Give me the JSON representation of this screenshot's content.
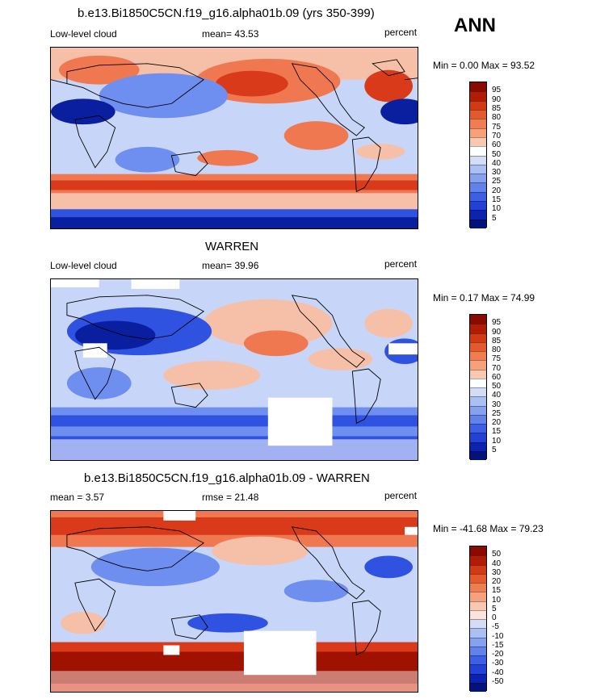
{
  "season": "ANN",
  "colors": {
    "deep_blue": "#0a1fa0",
    "blue": "#2f52e0",
    "mid_blue": "#6f8ff0",
    "light_blue": "#c7d6f8",
    "white": "#ffffff",
    "light_red": "#f6c0a8",
    "orange": "#f07850",
    "red": "#d83a1a",
    "dark_red": "#a01200"
  },
  "panels": [
    {
      "title": "b.e13.Bi1850C5CN.f19_g16.alpha01b.09 (yrs 350-399)",
      "left_label": "Low-level cloud",
      "stat_label": "mean=",
      "stat_value": "43.53",
      "units": "percent",
      "minmax": "Min =   0.00 Max =  93.52",
      "levels": [
        "95",
        "90",
        "85",
        "80",
        "75",
        "70",
        "60",
        "50",
        "40",
        "30",
        "25",
        "20",
        "15",
        "10",
        "5"
      ],
      "legend_colors": [
        "#8b0a00",
        "#b01c04",
        "#d13a14",
        "#e55a2c",
        "#f07c50",
        "#f6a07c",
        "#f8c8b0",
        "#ffffff",
        "#d2def8",
        "#aac0f5",
        "#86a2ef",
        "#6282ea",
        "#3e5fe3",
        "#2342d4",
        "#0e22b0",
        "#05127a"
      ]
    },
    {
      "title": "WARREN",
      "left_label": "Low-level cloud",
      "stat_label": "mean=",
      "stat_value": "39.96",
      "units": "percent",
      "minmax": "Min =   0.17 Max =  74.99",
      "levels": [
        "95",
        "90",
        "85",
        "80",
        "75",
        "70",
        "60",
        "50",
        "40",
        "30",
        "25",
        "20",
        "15",
        "10",
        "5"
      ],
      "legend_colors": [
        "#8b0a00",
        "#b01c04",
        "#d13a14",
        "#e55a2c",
        "#f07c50",
        "#f6a07c",
        "#f8c8b0",
        "#ffffff",
        "#d2def8",
        "#aac0f5",
        "#86a2ef",
        "#6282ea",
        "#3e5fe3",
        "#2342d4",
        "#0e22b0",
        "#05127a"
      ]
    },
    {
      "title": "b.e13.Bi1850C5CN.f19_g16.alpha01b.09 - WARREN",
      "left_label": "mean =   3.57",
      "stat_label": "rmse =",
      "stat_value": "21.48",
      "units": "percent",
      "minmax": "Min = -41.68 Max =  79.23",
      "levels": [
        "50",
        "40",
        "30",
        "20",
        "15",
        "10",
        "5",
        "0",
        "-5",
        "-10",
        "-15",
        "-20",
        "-30",
        "-40",
        "-50"
      ],
      "legend_colors": [
        "#8b0a00",
        "#b01c04",
        "#d13a14",
        "#e55a2c",
        "#f07c50",
        "#f6a07c",
        "#f8c8b0",
        "#fde4da",
        "#d2def8",
        "#aac0f5",
        "#86a2ef",
        "#6282ea",
        "#3e5fe3",
        "#2342d4",
        "#0e22b0",
        "#05127a"
      ]
    }
  ]
}
